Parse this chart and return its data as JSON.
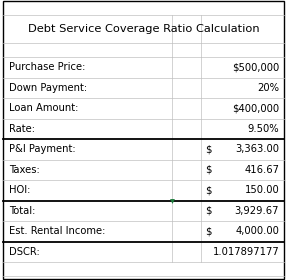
{
  "title": "Debt Service Coverage Ratio Calculation",
  "rows": [
    {
      "label": "Purchase Price:",
      "dollar": "",
      "value": "$500,000",
      "thick_bottom": false
    },
    {
      "label": "Down Payment:",
      "dollar": "",
      "value": "20%",
      "thick_bottom": false
    },
    {
      "label": "Loan Amount:",
      "dollar": "",
      "value": "$400,000",
      "thick_bottom": false
    },
    {
      "label": "Rate:",
      "dollar": "",
      "value": "9.50%",
      "thick_bottom": true
    },
    {
      "label": "P&I Payment:",
      "dollar": "$",
      "value": "3,363.00",
      "thick_bottom": false
    },
    {
      "label": "Taxes:",
      "dollar": "$",
      "value": "416.67",
      "thick_bottom": false
    },
    {
      "label": "HOI:",
      "dollar": "$",
      "value": "150.00",
      "thick_bottom": true
    },
    {
      "label": "Total:",
      "dollar": "$",
      "value": "3,929.67",
      "thick_bottom": false
    },
    {
      "label": "Est. Rental Income:",
      "dollar": "$",
      "value": "4,000.00",
      "thick_bottom": true
    },
    {
      "label": "DSCR:",
      "dollar": "",
      "value": "1.017897177",
      "thick_bottom": false
    }
  ],
  "bg_color": "#ffffff",
  "grid_color": "#c0c0c0",
  "thick_line_color": "#000000",
  "text_color": "#000000",
  "col_split": 0.6,
  "col_dollar": 0.7,
  "font_size": 7.2,
  "title_font_size": 8.2,
  "triangle_color": "#1a7a3a"
}
